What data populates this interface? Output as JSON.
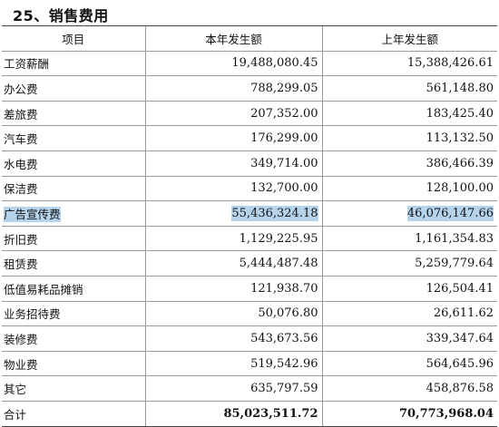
{
  "section_title": "25、销售费用",
  "header": {
    "item": "项目",
    "current": "本年发生额",
    "previous": "上年发生额"
  },
  "rows": [
    {
      "name": "工资薪酬",
      "current": "19,488,080.45",
      "previous": "15,388,426.61"
    },
    {
      "name": "办公费",
      "current": "788,299.05",
      "previous": "561,148.80"
    },
    {
      "name": "差旅费",
      "current": "207,352.00",
      "previous": "183,425.40"
    },
    {
      "name": "汽车费",
      "current": "176,299.00",
      "previous": "113,132.50"
    },
    {
      "name": "水电费",
      "current": "349,714.00",
      "previous": "386,466.39"
    },
    {
      "name": "保洁费",
      "current": "132,700.00",
      "previous": "128,100.00"
    },
    {
      "name": "广告宣传费",
      "current": "55,436,324.18",
      "previous": "46,076,147.66"
    },
    {
      "name": "折旧费",
      "current": "1,129,225.95",
      "previous": "1,161,354.83"
    },
    {
      "name": "租赁费",
      "current": "5,444,487.48",
      "previous": "5,259,779.64"
    },
    {
      "name": "低值易耗品摊销",
      "current": "121,938.70",
      "previous": "126,504.41"
    },
    {
      "name": "业务招待费",
      "current": "50,076.80",
      "previous": "26,611.62"
    },
    {
      "name": "装修费",
      "current": "543,673.56",
      "previous": "339,347.64"
    },
    {
      "name": "物业费",
      "current": "519,542.96",
      "previous": "564,645.96"
    },
    {
      "name": "其它",
      "current": "635,797.59",
      "previous": "458,876.58"
    }
  ],
  "total": {
    "name": "合计",
    "current": "85,023,511.72",
    "previous": "70,773,968.04"
  },
  "highlight_color": "#b6d3ec"
}
